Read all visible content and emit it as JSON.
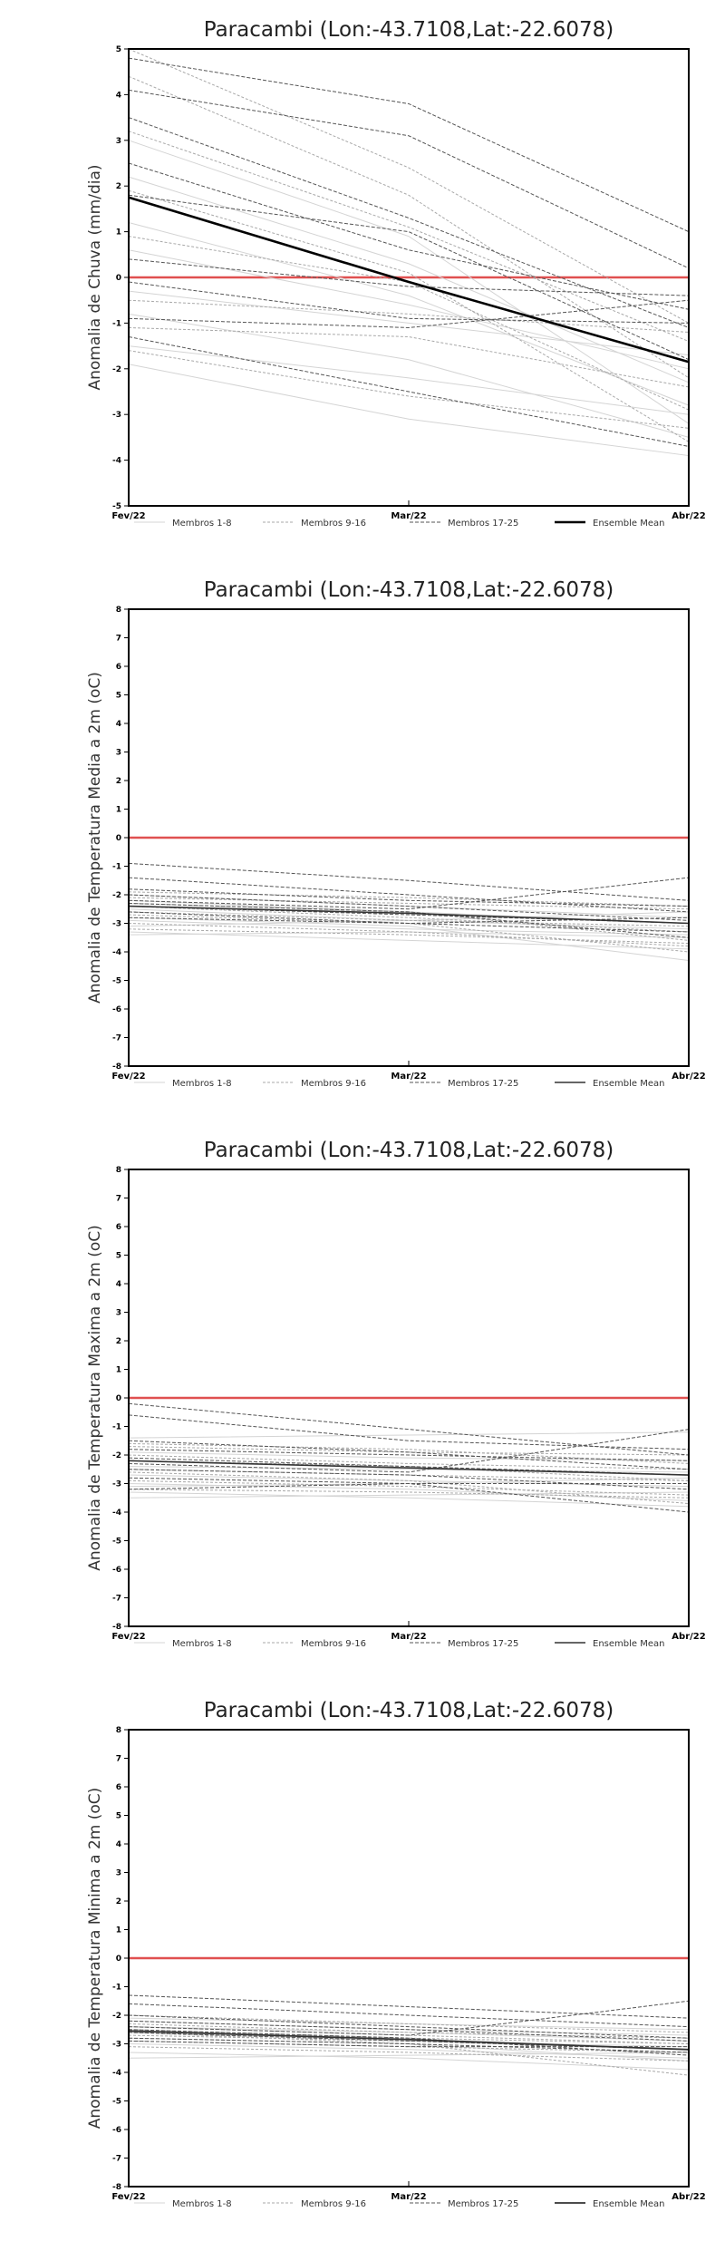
{
  "chart_data": [
    {
      "type": "line",
      "title": "Paracambi (Lon:-43.7108,Lat:-22.6078)",
      "ylabel": "Anomalia de Chuva (mm/dia)",
      "x": [
        "Fev/22",
        "Mar/22",
        "Abr/22"
      ],
      "ylim": [
        -5,
        5
      ],
      "yticks": [
        -5,
        -4,
        -3,
        -2,
        -1,
        0,
        1,
        2,
        3,
        4,
        5
      ],
      "zero_line_color": "#e05050",
      "legend": [
        "Membros 1-8",
        "Membros 9-16",
        "Membros 17-25",
        "Ensemble Mean"
      ],
      "legend_placement": "bottom",
      "groups": [
        {
          "name": "Membros 1-8",
          "color": "#d4d4d4",
          "lines": [
            [
              -1.9,
              -3.1,
              -3.9
            ],
            [
              3.0,
              0.9,
              -3.2
            ],
            [
              1.2,
              -0.4,
              -2.8
            ],
            [
              -0.3,
              -1.0,
              -1.7
            ],
            [
              2.2,
              0.3,
              -2.3
            ],
            [
              -0.8,
              -1.8,
              -3.5
            ],
            [
              0.6,
              -0.6,
              -2.0
            ],
            [
              -1.5,
              -2.2,
              -3.0
            ]
          ]
        },
        {
          "name": "Membros 9-16",
          "color": "#a8a8a8",
          "lines": [
            [
              5.0,
              2.4,
              -1.0
            ],
            [
              0.9,
              -0.1,
              -2.9
            ],
            [
              -1.1,
              -1.3,
              -2.4
            ],
            [
              1.9,
              0.1,
              -3.6
            ],
            [
              3.2,
              1.1,
              -1.4
            ],
            [
              -0.5,
              -0.8,
              -1.2
            ],
            [
              4.4,
              1.8,
              -2.2
            ],
            [
              -1.6,
              -2.6,
              -3.3
            ]
          ]
        },
        {
          "name": "Membros 17-25",
          "color": "#555555",
          "lines": [
            [
              4.8,
              3.8,
              1.0
            ],
            [
              4.1,
              3.1,
              0.2
            ],
            [
              3.5,
              1.3,
              -1.1
            ],
            [
              2.5,
              0.6,
              -0.7
            ],
            [
              1.8,
              1.0,
              -1.8
            ],
            [
              0.4,
              -0.2,
              -0.4
            ],
            [
              -0.1,
              -0.9,
              -1.0
            ],
            [
              -1.3,
              -2.5,
              -3.7
            ],
            [
              -0.9,
              -1.1,
              -0.5
            ]
          ]
        },
        {
          "name": "Ensemble Mean",
          "color": "#000000",
          "width": 2.6,
          "lines": [
            [
              1.75,
              -0.1,
              -1.85
            ]
          ]
        }
      ]
    },
    {
      "type": "line",
      "title": "Paracambi (Lon:-43.7108,Lat:-22.6078)",
      "ylabel": "Anomalia de Temperatura Media a 2m (oC)",
      "x": [
        "Fev/22",
        "Mar/22",
        "Abr/22"
      ],
      "ylim": [
        -8,
        8
      ],
      "yticks": [
        -8,
        -7,
        -6,
        -5,
        -4,
        -3,
        -2,
        -1,
        0,
        1,
        2,
        3,
        4,
        5,
        6,
        7,
        8
      ],
      "zero_line_color": "#e05050",
      "legend": [
        "Membros 1-8",
        "Membros 9-16",
        "Membros 17-25",
        "Ensemble Mean"
      ],
      "legend_placement": "bottom",
      "groups": [
        {
          "name": "Membros 1-8",
          "color": "#d4d4d4",
          "lines": [
            [
              -3.4,
              -3.3,
              -3.5
            ],
            [
              -2.2,
              -2.6,
              -3.0
            ],
            [
              -2.8,
              -3.1,
              -4.3
            ],
            [
              -3.1,
              -2.9,
              -2.6
            ],
            [
              -2.5,
              -2.9,
              -3.2
            ],
            [
              -3.3,
              -3.6,
              -3.9
            ],
            [
              -2.0,
              -2.4,
              -2.8
            ],
            [
              -2.9,
              -3.2,
              -3.4
            ]
          ]
        },
        {
          "name": "Membros 9-16",
          "color": "#a8a8a8",
          "lines": [
            [
              -2.3,
              -2.6,
              -3.6
            ],
            [
              -3.0,
              -3.3,
              -3.8
            ],
            [
              -2.1,
              -2.3,
              -2.5
            ],
            [
              -2.6,
              -2.9,
              -3.1
            ],
            [
              -1.9,
              -2.1,
              -2.4
            ],
            [
              -3.2,
              -3.4,
              -3.7
            ],
            [
              -2.4,
              -2.8,
              -3.3
            ],
            [
              -2.7,
              -3.0,
              -4.0
            ]
          ]
        },
        {
          "name": "Membros 17-25",
          "color": "#555555",
          "lines": [
            [
              -0.9,
              -1.5,
              -2.2
            ],
            [
              -1.4,
              -2.0,
              -2.6
            ],
            [
              -1.8,
              -2.2,
              -2.4
            ],
            [
              -2.2,
              -2.5,
              -1.4
            ],
            [
              -2.4,
              -2.7,
              -3.0
            ],
            [
              -2.6,
              -3.0,
              -3.3
            ],
            [
              -2.8,
              -3.0,
              -2.8
            ],
            [
              -2.3,
              -2.6,
              -3.5
            ],
            [
              -2.0,
              -2.4,
              -2.9
            ]
          ]
        },
        {
          "name": "Ensemble Mean",
          "color": "#333333",
          "width": 1.6,
          "lines": [
            [
              -2.4,
              -2.65,
              -3.0
            ]
          ]
        }
      ]
    },
    {
      "type": "line",
      "title": "Paracambi (Lon:-43.7108,Lat:-22.6078)",
      "ylabel": "Anomalia de Temperatura Maxima a 2m (oC)",
      "x": [
        "Fev/22",
        "Mar/22",
        "Abr/22"
      ],
      "ylim": [
        -8,
        8
      ],
      "yticks": [
        -8,
        -7,
        -6,
        -5,
        -4,
        -3,
        -2,
        -1,
        0,
        1,
        2,
        3,
        4,
        5,
        6,
        7,
        8
      ],
      "zero_line_color": "#e05050",
      "legend": [
        "Membros 1-8",
        "Membros 9-16",
        "Membros 17-25",
        "Ensemble Mean"
      ],
      "legend_placement": "bottom",
      "groups": [
        {
          "name": "Membros 1-8",
          "color": "#d4d4d4",
          "lines": [
            [
              -3.5,
              -3.4,
              -3.3
            ],
            [
              -2.4,
              -2.5,
              -2.6
            ],
            [
              -3.0,
              -3.2,
              -3.6
            ],
            [
              -1.4,
              -1.3,
              -1.2
            ],
            [
              -2.7,
              -2.9,
              -3.1
            ],
            [
              -3.3,
              -3.5,
              -3.8
            ],
            [
              -1.9,
              -2.1,
              -2.2
            ],
            [
              -3.1,
              -3.0,
              -2.8
            ]
          ]
        },
        {
          "name": "Membros 9-16",
          "color": "#a8a8a8",
          "lines": [
            [
              -2.2,
              -2.4,
              -2.9
            ],
            [
              -2.9,
              -3.1,
              -3.4
            ],
            [
              -1.7,
              -1.9,
              -2.0
            ],
            [
              -2.5,
              -2.7,
              -2.9
            ],
            [
              -3.2,
              -3.3,
              -3.5
            ],
            [
              -2.0,
              -2.3,
              -2.5
            ],
            [
              -2.6,
              -2.9,
              -3.7
            ],
            [
              -1.6,
              -1.8,
              -2.3
            ]
          ]
        },
        {
          "name": "Membros 17-25",
          "color": "#555555",
          "lines": [
            [
              -0.2,
              -1.1,
              -2.0
            ],
            [
              -0.6,
              -1.5,
              -1.8
            ],
            [
              -1.5,
              -1.9,
              -2.5
            ],
            [
              -2.3,
              -2.6,
              -1.1
            ],
            [
              -2.1,
              -2.4,
              -2.7
            ],
            [
              -2.8,
              -3.0,
              -3.0
            ],
            [
              -2.5,
              -2.7,
              -3.2
            ],
            [
              -1.8,
              -2.0,
              -2.2
            ],
            [
              -3.2,
              -3.0,
              -4.0
            ]
          ]
        },
        {
          "name": "Ensemble Mean",
          "color": "#333333",
          "width": 1.6,
          "lines": [
            [
              -2.2,
              -2.45,
              -2.7
            ]
          ]
        }
      ]
    },
    {
      "type": "line",
      "title": "Paracambi (Lon:-43.7108,Lat:-22.6078)",
      "ylabel": "Anomalia de Temperatura Minima a 2m (oC)",
      "x": [
        "Fev/22",
        "Mar/22",
        "Abr/22"
      ],
      "ylim": [
        -8,
        8
      ],
      "yticks": [
        -8,
        -7,
        -6,
        -5,
        -4,
        -3,
        -2,
        -1,
        0,
        1,
        2,
        3,
        4,
        5,
        6,
        7,
        8
      ],
      "zero_line_color": "#e05050",
      "legend": [
        "Membros 1-8",
        "Membros 9-16",
        "Membros 17-25",
        "Ensemble Mean"
      ],
      "legend_placement": "bottom",
      "groups": [
        {
          "name": "Membros 1-8",
          "color": "#d4d4d4",
          "lines": [
            [
              -3.5,
              -3.4,
              -3.3
            ],
            [
              -2.6,
              -2.9,
              -3.1
            ],
            [
              -2.2,
              -2.5,
              -2.7
            ],
            [
              -3.0,
              -3.2,
              -3.5
            ],
            [
              -2.8,
              -3.0,
              -3.6
            ],
            [
              -2.4,
              -2.6,
              -2.9
            ],
            [
              -3.3,
              -3.5,
              -3.9
            ],
            [
              -2.1,
              -2.3,
              -2.5
            ]
          ]
        },
        {
          "name": "Membros 9-16",
          "color": "#a8a8a8",
          "lines": [
            [
              -2.3,
              -2.6,
              -2.8
            ],
            [
              -2.9,
              -3.1,
              -3.3
            ],
            [
              -2.5,
              -2.8,
              -3.0
            ],
            [
              -3.1,
              -3.3,
              -3.6
            ],
            [
              -2.0,
              -2.3,
              -2.6
            ],
            [
              -2.7,
              -2.9,
              -3.2
            ],
            [
              -2.4,
              -2.7,
              -3.0
            ],
            [
              -2.6,
              -3.0,
              -4.1
            ]
          ]
        },
        {
          "name": "Membros 17-25",
          "color": "#555555",
          "lines": [
            [
              -1.3,
              -1.7,
              -2.1
            ],
            [
              -1.6,
              -2.0,
              -2.4
            ],
            [
              -2.0,
              -2.4,
              -2.8
            ],
            [
              -2.4,
              -2.7,
              -1.5
            ],
            [
              -2.6,
              -2.9,
              -3.2
            ],
            [
              -2.8,
              -3.0,
              -3.3
            ],
            [
              -2.2,
              -2.5,
              -2.9
            ],
            [
              -2.5,
              -2.8,
              -3.4
            ],
            [
              -2.9,
              -3.1,
              -3.1
            ]
          ]
        },
        {
          "name": "Ensemble Mean",
          "color": "#333333",
          "width": 1.8,
          "lines": [
            [
              -2.55,
              -2.85,
              -3.2
            ]
          ]
        }
      ]
    }
  ]
}
